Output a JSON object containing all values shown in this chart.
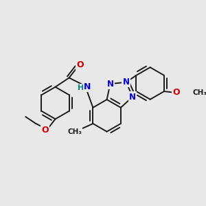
{
  "bg_color": "#e8e8e8",
  "bond_color": "#1a1a1a",
  "bond_width": 1.4,
  "atom_colors": {
    "N": "#0000dd",
    "O": "#cc0000",
    "H": "#008888",
    "C": "#1a1a1a"
  },
  "fig_size": [
    3.0,
    3.0
  ],
  "dpi": 100
}
